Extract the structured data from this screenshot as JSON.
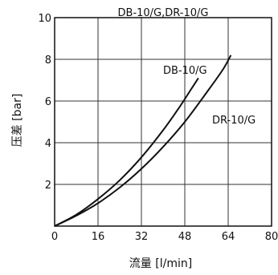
{
  "chart_data": {
    "type": "line",
    "title": "DB-10/G,DR-10/G",
    "xlabel": "流量 [l/min]",
    "ylabel": "压差 [bar]",
    "xlim": [
      0,
      80
    ],
    "ylim": [
      0,
      10
    ],
    "x_ticks": [
      0,
      16,
      32,
      48,
      64,
      80
    ],
    "y_ticks": [
      2,
      4,
      6,
      8,
      10
    ],
    "grid": true,
    "series": [
      {
        "name": "DB-10/G",
        "x": [
          0,
          8,
          16,
          24,
          32,
          40,
          46,
          50,
          53
        ],
        "y": [
          0,
          0.55,
          1.3,
          2.2,
          3.3,
          4.6,
          5.7,
          6.5,
          7.1
        ]
      },
      {
        "name": "DR-10/G",
        "x": [
          0,
          8,
          16,
          24,
          32,
          40,
          48,
          56,
          62,
          65
        ],
        "y": [
          0,
          0.5,
          1.1,
          1.85,
          2.75,
          3.8,
          5.0,
          6.4,
          7.5,
          8.2
        ]
      }
    ],
    "series_color": "#111111",
    "grid_color": "#333333"
  }
}
